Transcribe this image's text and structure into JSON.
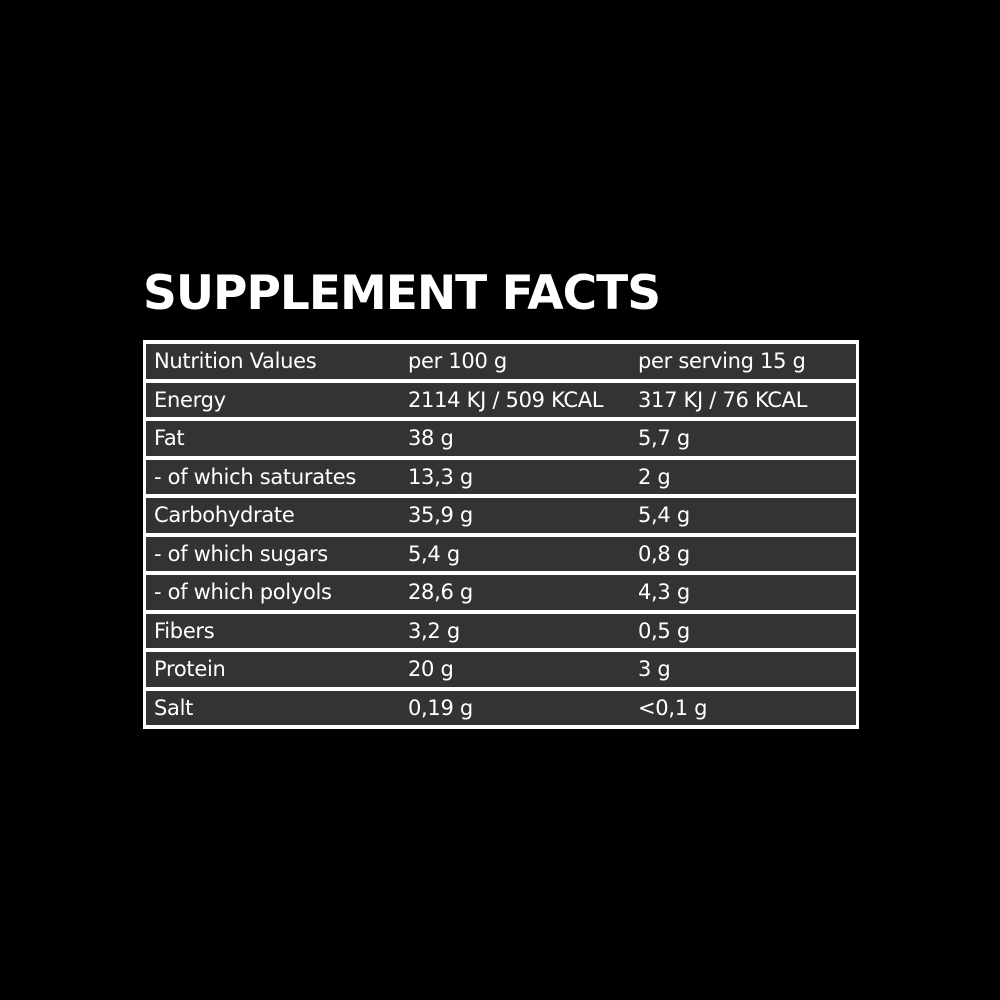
{
  "header": {
    "title": "SUPPLEMENT FACTS"
  },
  "table": {
    "rows": [
      [
        "Nutrition Values",
        "per 100 g",
        "per serving 15 g"
      ],
      [
        "Energy",
        "2114 KJ / 509 KCAL",
        "317 KJ / 76 KCAL"
      ],
      [
        "Fat",
        "38 g",
        "5,7 g"
      ],
      [
        "- of which saturates",
        "13,3 g",
        "2 g"
      ],
      [
        "Carbohydrate",
        "35,9 g",
        "5,4 g"
      ],
      [
        "- of which sugars",
        "5,4 g",
        "0,8 g"
      ],
      [
        "- of which polyols",
        "28,6 g",
        "4,3 g"
      ],
      [
        "Fibers",
        "3,2 g",
        "0,5 g"
      ],
      [
        "Protein",
        "20 g",
        "3 g"
      ],
      [
        "Salt",
        "0,19 g",
        "<0,1 g"
      ]
    ]
  }
}
